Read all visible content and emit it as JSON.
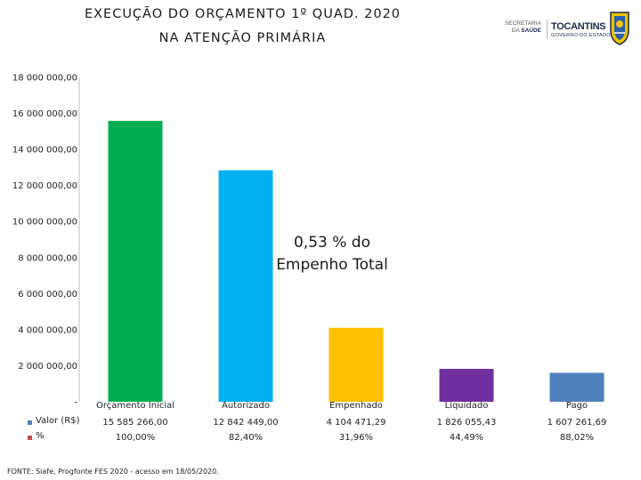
{
  "title_line1": "EXECUÇÃO DO ORÇAMENTO  1º QUAD. 2020",
  "title_line2": "NA ATENÇÃO PRIMÁRIA",
  "logos": {
    "secretaria_line1": "SECRETARIA",
    "secretaria_line2_a": "DA ",
    "secretaria_line2_b": "SAÚDE",
    "state_name": "TOCANTINS",
    "state_sub": "GOVERNO DO ESTADO"
  },
  "annotation": "0,53 % do Empenho Total",
  "source": "FONTE: Siafe, Progfonte FES 2020 - acesso em 18/05/2020.",
  "table": {
    "row_valor_label": "Valor (R$)",
    "row_pct_label": "%",
    "valor_formatted": [
      "15 585 266,00",
      "12 842 449,00",
      "4 104 471,29",
      "1 826 055,43",
      "1 607 261,69"
    ],
    "pct_formatted": [
      "100,00%",
      "82,40%",
      "31,96%",
      "44,49%",
      "88,02%"
    ]
  },
  "chart_data": {
    "type": "bar",
    "categories": [
      "Orçamento Inicial",
      "Autorizado",
      "Empenhado",
      "Liquidado",
      "Pago"
    ],
    "series": [
      {
        "name": "Valor (R$)",
        "values": [
          15585266.0,
          12842449.0,
          4104471.29,
          1826055.43,
          1607261.69
        ]
      },
      {
        "name": "%",
        "values": [
          100.0,
          82.4,
          31.96,
          44.49,
          88.02
        ]
      }
    ],
    "bar_colors": [
      "#00b050",
      "#00b0f0",
      "#ffc000",
      "#7030a0",
      "#4f81bd"
    ],
    "legend_colors": {
      "Valor (R$)": "#4f81bd",
      "%": "#c0504d"
    },
    "ylim": [
      0,
      18000000
    ],
    "yticks": [
      0,
      2000000,
      4000000,
      6000000,
      8000000,
      10000000,
      12000000,
      14000000,
      16000000,
      18000000
    ],
    "ytick_labels": [
      "-",
      "2 000 000,00",
      "4 000 000,00",
      "6 000 000,00",
      "8 000 000,00",
      "10 000 000,00",
      "12 000 000,00",
      "14 000 000,00",
      "16 000 000,00",
      "18 000 000,00"
    ],
    "grid": false,
    "legend": "data-table"
  }
}
